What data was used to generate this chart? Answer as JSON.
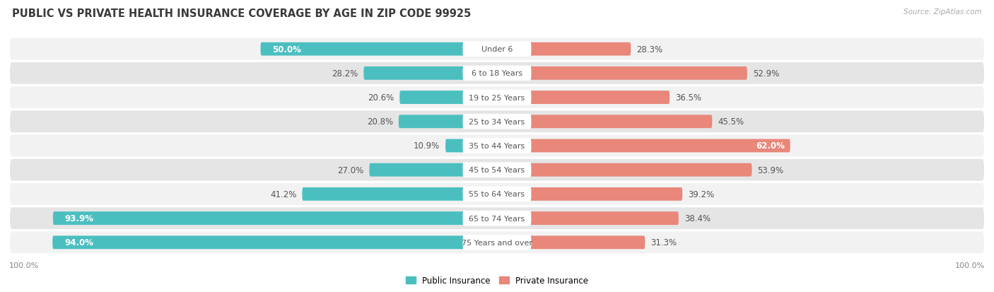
{
  "title": "PUBLIC VS PRIVATE HEALTH INSURANCE COVERAGE BY AGE IN ZIP CODE 99925",
  "source": "Source: ZipAtlas.com",
  "categories": [
    "Under 6",
    "6 to 18 Years",
    "19 to 25 Years",
    "25 to 34 Years",
    "35 to 44 Years",
    "45 to 54 Years",
    "55 to 64 Years",
    "65 to 74 Years",
    "75 Years and over"
  ],
  "public_values": [
    50.0,
    28.2,
    20.6,
    20.8,
    10.9,
    27.0,
    41.2,
    93.9,
    94.0
  ],
  "private_values": [
    28.3,
    52.9,
    36.5,
    45.5,
    62.0,
    53.9,
    39.2,
    38.4,
    31.3
  ],
  "public_color": "#4BBFC0",
  "private_color": "#E8877A",
  "row_bg_light": "#F2F2F2",
  "row_bg_dark": "#E5E5E5",
  "title_fontsize": 10.5,
  "label_fontsize": 8.0,
  "value_fontsize": 8.5,
  "axis_max": 100.0,
  "fig_bg_color": "#FFFFFF",
  "text_dark": "#555555",
  "text_white": "#FFFFFF"
}
